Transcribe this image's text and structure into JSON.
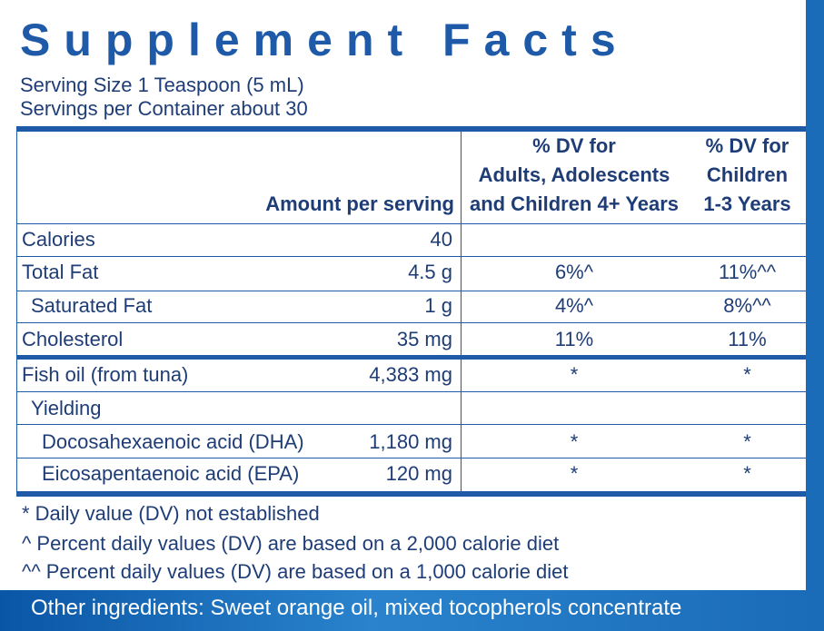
{
  "label": {
    "title": "Supplement Facts",
    "serving_size": "Serving Size 1 Teaspoon (5 mL)",
    "servings_per_container": "Servings per Container about 30"
  },
  "columns": {
    "amount": "Amount per serving",
    "adult_dv": [
      "% DV for",
      "Adults, Adolescents",
      "and Children 4+ Years"
    ],
    "child_dv": [
      "% DV for",
      "Children",
      "1-3 Years"
    ]
  },
  "rows": [
    {
      "name": "Calories",
      "amount": "40",
      "adult_dv": "",
      "child_dv": ""
    },
    {
      "name": "Total Fat",
      "amount": "4.5 g",
      "adult_dv": "6%^",
      "child_dv": "11%^^"
    },
    {
      "name": "Saturated Fat",
      "amount": "1 g",
      "adult_dv": "4%^",
      "child_dv": "8%^^"
    },
    {
      "name": "Cholesterol",
      "amount": "35 mg",
      "adult_dv": "11%",
      "child_dv": "11%"
    },
    {
      "name": "Fish oil (from tuna)",
      "amount": "4,383 mg",
      "adult_dv": "*",
      "child_dv": "*"
    },
    {
      "name": "Yielding",
      "amount": "",
      "adult_dv": "",
      "child_dv": ""
    },
    {
      "name": "Docosahexaenoic acid (DHA)",
      "amount": "1,180 mg",
      "adult_dv": "*",
      "child_dv": "*"
    },
    {
      "name": "Eicosapentaenoic acid (EPA)",
      "amount": "120 mg",
      "adult_dv": "*",
      "child_dv": "*"
    }
  ],
  "footnotes": [
    "* Daily value (DV) not established",
    "^ Percent daily values (DV) are based on a 2,000 calorie diet",
    "^^ Percent daily values (DV) are based on a 1,000 calorie diet"
  ],
  "other_ingredients": "Other ingredients: Sweet orange oil, mixed tocopherols concentrate",
  "colors": {
    "primary": "#1e5aa8",
    "text": "#1e3d76",
    "background_blue": "#1a6bb8"
  }
}
